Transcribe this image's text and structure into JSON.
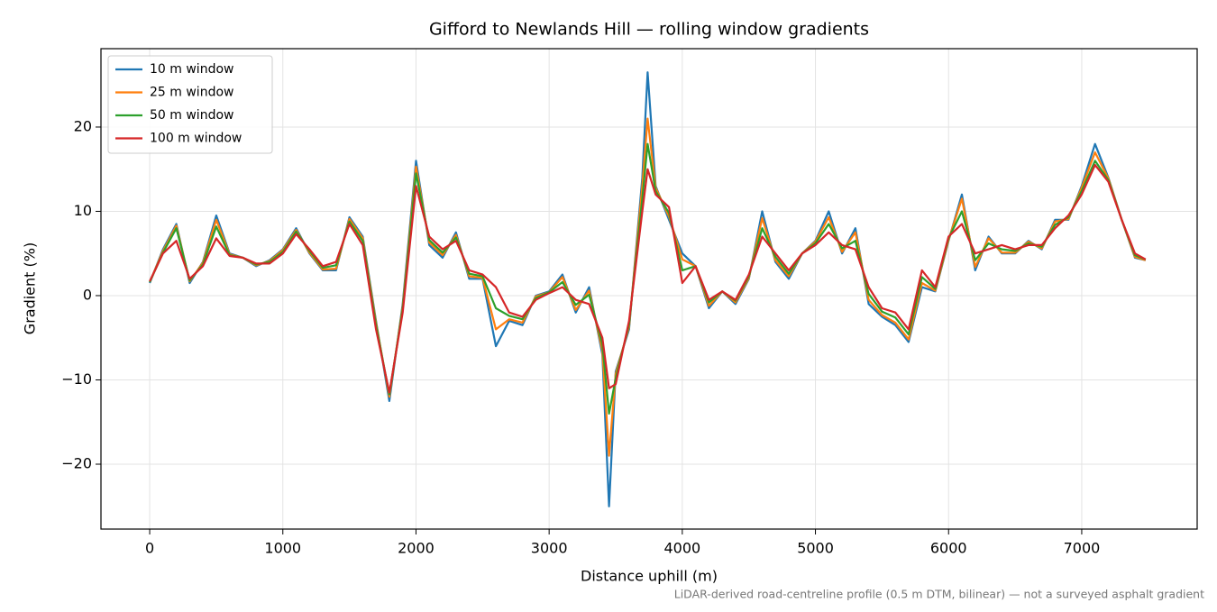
{
  "chart_data": {
    "type": "line",
    "title": "Gifford to Newlands Hill — rolling window gradients",
    "x_label": "Distance uphill (m)",
    "y_label": "Gradient (%)",
    "note": "LiDAR-derived road-centreline profile (0.5 m DTM, bilinear) — not a surveyed asphalt gradient",
    "x": [
      0,
      100,
      200,
      300,
      400,
      500,
      600,
      700,
      800,
      900,
      1000,
      1100,
      1200,
      1300,
      1400,
      1500,
      1600,
      1700,
      1800,
      1900,
      2000,
      2100,
      2200,
      2300,
      2400,
      2500,
      2600,
      2700,
      2800,
      2900,
      3000,
      3100,
      3200,
      3300,
      3400,
      3450,
      3500,
      3600,
      3700,
      3740,
      3800,
      3900,
      4000,
      4100,
      4200,
      4300,
      4400,
      4500,
      4600,
      4700,
      4800,
      4900,
      5000,
      5100,
      5200,
      5300,
      5400,
      5500,
      5600,
      5700,
      5800,
      5900,
      6000,
      6100,
      6200,
      6300,
      6400,
      6500,
      6600,
      6700,
      6800,
      6900,
      7000,
      7100,
      7200,
      7300,
      7400,
      7480
    ],
    "series": [
      {
        "name": "10 m window",
        "color": "#1f77b4",
        "values": [
          1.5,
          5.5,
          8.5,
          1.5,
          4,
          9.5,
          5,
          4.5,
          3.5,
          4.2,
          5.5,
          8,
          5,
          3,
          3,
          9.3,
          7,
          -3,
          -12.5,
          -1,
          16,
          6,
          4.5,
          7.5,
          2,
          2,
          -6,
          -3,
          -3.5,
          0,
          0.5,
          2.5,
          -2,
          1,
          -7,
          -25,
          -9,
          -4,
          14,
          26.5,
          13,
          9,
          5,
          3.5,
          -1.5,
          0.5,
          -1,
          2,
          10,
          4,
          2,
          5,
          6.5,
          10,
          5,
          8,
          -1,
          -2.5,
          -3.5,
          -5.5,
          1,
          0.5,
          6.5,
          12,
          3,
          7,
          5,
          5,
          6.5,
          5.5,
          9,
          9,
          13,
          18,
          14,
          9,
          4.5,
          4.2
        ]
      },
      {
        "name": "25 m window",
        "color": "#ff7f0e",
        "values": [
          1.6,
          5.3,
          8.3,
          1.7,
          3.9,
          9,
          4.9,
          4.5,
          3.6,
          4.1,
          5.4,
          7.8,
          5.1,
          3.1,
          3.2,
          9.1,
          6.8,
          -3.2,
          -12,
          -1.3,
          15.3,
          6.3,
          4.8,
          7.2,
          2.3,
          2.1,
          -4,
          -2.8,
          -3.2,
          -0.1,
          0.4,
          2.2,
          -1.7,
          0.6,
          -6.5,
          -19,
          -9.3,
          -3.7,
          13,
          21,
          12.8,
          9.4,
          4.3,
          3.5,
          -1.2,
          0.5,
          -0.8,
          2.1,
          9.2,
          4.2,
          2.3,
          5,
          6.4,
          9.3,
          5.2,
          7.5,
          -0.5,
          -2.3,
          -3.2,
          -5.2,
          1.5,
          0.6,
          6.6,
          11.5,
          3.4,
          6.8,
          5.1,
          5.1,
          6.4,
          5.6,
          8.8,
          9.1,
          12.8,
          17,
          13.9,
          9,
          4.6,
          4.2
        ]
      },
      {
        "name": "50 m window",
        "color": "#2ca02c",
        "values": [
          1.6,
          5.1,
          8,
          1.8,
          3.7,
          8.2,
          4.8,
          4.5,
          3.7,
          4,
          5.2,
          7.6,
          5.3,
          3.3,
          3.6,
          8.8,
          6.5,
          -3.5,
          -11.7,
          -1.6,
          14.5,
          6.6,
          5.1,
          6.9,
          2.6,
          2.3,
          -1.5,
          -2.4,
          -2.8,
          -0.3,
          0.4,
          1.6,
          -1.1,
          0.1,
          -5.8,
          -14,
          -9.8,
          -3.4,
          11.5,
          18,
          12.4,
          9.8,
          3,
          3.5,
          -0.8,
          0.5,
          -0.6,
          2.3,
          8,
          4.6,
          2.6,
          5,
          6.2,
          8.5,
          5.6,
          6.5,
          0.2,
          -1.9,
          -2.6,
          -4.6,
          2.2,
          0.8,
          6.8,
          10,
          4.2,
          6.2,
          5.5,
          5.3,
          6.2,
          5.8,
          8.4,
          9.3,
          12.4,
          16,
          13.7,
          9,
          4.8,
          4.3
        ]
      },
      {
        "name": "100 m window",
        "color": "#d62728",
        "values": [
          1.7,
          5,
          6.5,
          2,
          3.5,
          6.8,
          4.7,
          4.5,
          3.8,
          3.8,
          5,
          7.3,
          5.5,
          3.5,
          4,
          8.5,
          6,
          -4,
          -11.5,
          -2,
          13,
          7,
          5.5,
          6.5,
          3,
          2.5,
          1,
          -2,
          -2.5,
          -0.5,
          0.3,
          1,
          -0.5,
          -1,
          -5,
          -11,
          -10.5,
          -3,
          10,
          15,
          12,
          10.5,
          1.5,
          3.5,
          -0.5,
          0.5,
          -0.5,
          2.5,
          7,
          5,
          3,
          5,
          6,
          7.5,
          6,
          5.5,
          1,
          -1.5,
          -2,
          -4,
          3,
          1,
          7,
          8.5,
          5,
          5.5,
          6,
          5.5,
          6,
          6,
          8,
          9.5,
          12,
          15.5,
          13.5,
          9,
          5,
          4.3
        ]
      }
    ],
    "xlim": [
      -366,
      7867
    ],
    "ylim": [
      -27.7,
      29.3
    ],
    "xticks": [
      0,
      1000,
      2000,
      3000,
      4000,
      5000,
      6000,
      7000
    ],
    "yticks": [
      {
        "value": -20,
        "label": "−20"
      },
      {
        "value": -10,
        "label": "−10"
      },
      0,
      10,
      20
    ],
    "grid": true,
    "legend": "upper-left"
  }
}
